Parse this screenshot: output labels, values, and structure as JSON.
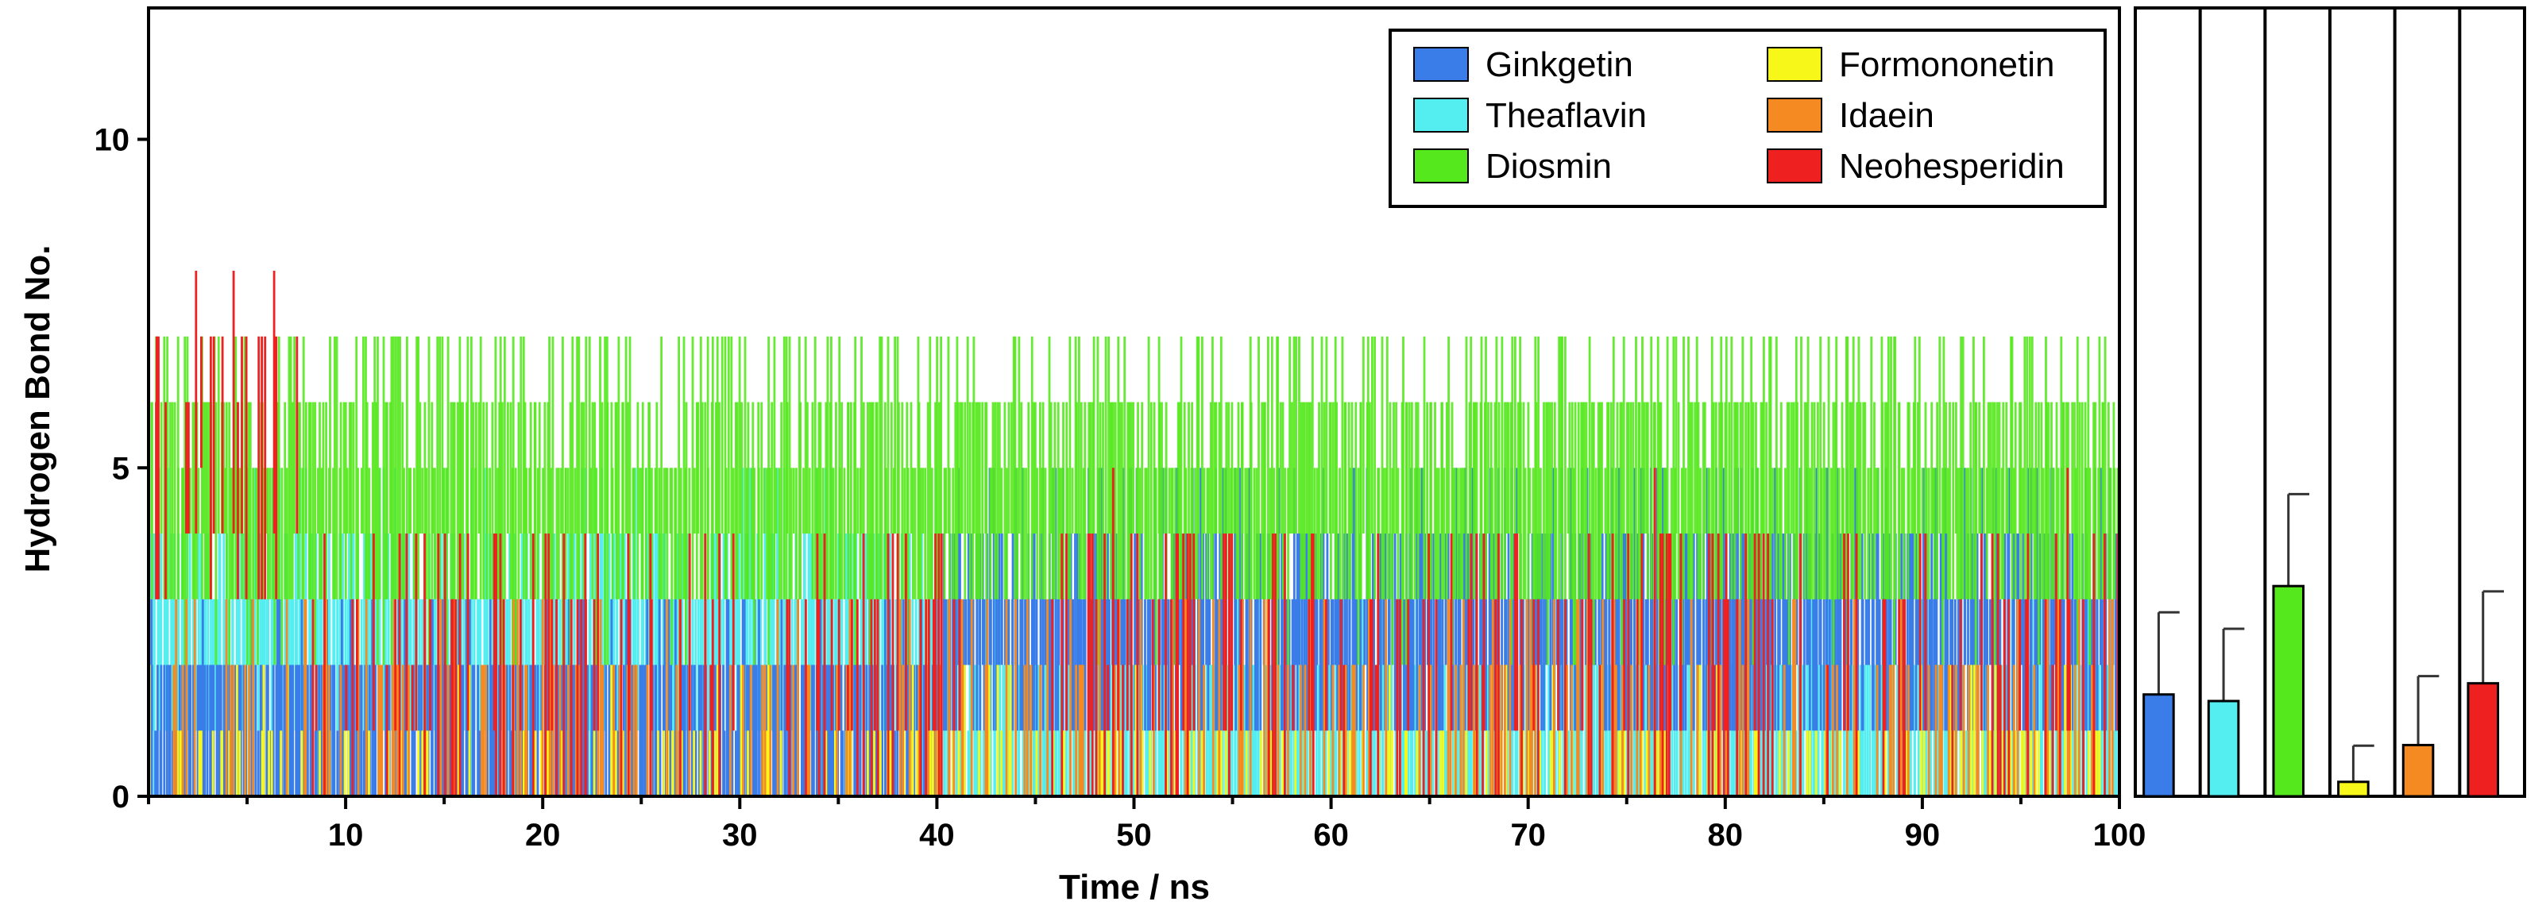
{
  "chart_data": [
    {
      "type": "bar",
      "subtype": "hydrogen-bond time series",
      "title": "",
      "xlabel": "Time / ns",
      "ylabel": "Hydrogen Bond No.",
      "xlim": [
        0,
        100
      ],
      "ylim": [
        0,
        12
      ],
      "xticks": [
        10,
        20,
        30,
        40,
        50,
        60,
        70,
        80,
        90,
        100
      ],
      "yticks": [
        0,
        5,
        10
      ],
      "legend": {
        "placement": "top-right",
        "columns": 2
      },
      "series": [
        {
          "name": "Ginkgetin",
          "color": "#3a7de8",
          "segments": [
            {
              "x0": 0,
              "x1": 40,
              "center": 0.9,
              "spread": 0.9
            },
            {
              "x0": 40,
              "x1": 100,
              "center": 2.4,
              "spread": 1.4
            }
          ]
        },
        {
          "name": "Theaflavin",
          "color": "#54eef0",
          "segments": [
            {
              "x0": 0,
              "x1": 40,
              "center": 2.2,
              "spread": 1.4
            },
            {
              "x0": 40,
              "x1": 100,
              "center": 0.9,
              "spread": 0.9
            }
          ]
        },
        {
          "name": "Diosmin",
          "color": "#55e81d",
          "segments": [
            {
              "x0": 0,
              "x1": 100,
              "center": 4.4,
              "spread": 1.5
            }
          ]
        },
        {
          "name": "Formononetin",
          "color": "#f7f71a",
          "segments": [
            {
              "x0": 0,
              "x1": 100,
              "center": 0.3,
              "spread": 0.6
            }
          ]
        },
        {
          "name": "Idaein",
          "color": "#f58a22",
          "segments": [
            {
              "x0": 0,
              "x1": 100,
              "center": 1.0,
              "spread": 1.2
            }
          ]
        },
        {
          "name": "Neohesperidin",
          "color": "#ee2020",
          "segments": [
            {
              "x0": 0,
              "x1": 8,
              "center": 5.2,
              "spread": 1.8
            },
            {
              "x0": 8,
              "x1": 100,
              "center": 1.8,
              "spread": 1.6
            }
          ]
        }
      ]
    },
    {
      "type": "bar",
      "title": "",
      "xlabel": "",
      "ylabel": "",
      "ylim": [
        0,
        12
      ],
      "categories": [
        "Ginkgetin",
        "Theaflavin",
        "Diosmin",
        "Formononetin",
        "Idaein",
        "Neohesperidin"
      ],
      "values": [
        1.55,
        1.45,
        3.2,
        0.22,
        0.78,
        1.72
      ],
      "errors": [
        1.25,
        1.1,
        1.4,
        0.55,
        1.05,
        1.4
      ],
      "colors": [
        "#3a7de8",
        "#54eef0",
        "#55e81d",
        "#f7f71a",
        "#f58a22",
        "#ee2020"
      ]
    }
  ]
}
